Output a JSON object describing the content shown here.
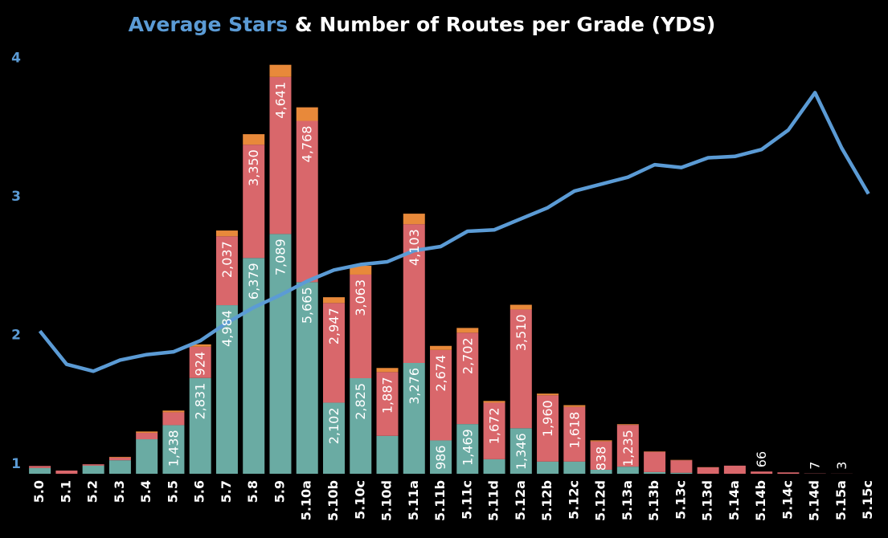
{
  "chart_data": {
    "type": "bar",
    "title_highlight": "Average Stars",
    "title": "& Number of Routes per Grade (YDS)",
    "title_color": "#5b9bd5",
    "categories": [
      "5.0",
      "5.1",
      "5.2",
      "5.3",
      "5.4",
      "5.5",
      "5.6",
      "5.7",
      "5.8",
      "5.9",
      "5.10a",
      "5.10b",
      "5.10c",
      "5.10d",
      "5.11a",
      "5.11b",
      "5.11c",
      "5.11d",
      "5.12a",
      "5.12b",
      "5.12c",
      "5.12d",
      "5.13a",
      "5.13b",
      "5.13c",
      "5.13d",
      "5.14a",
      "5.14b",
      "5.14c",
      "5.14d",
      "5.15a",
      "5.15c"
    ],
    "ylim": [
      0,
      12700
    ],
    "y2lim": [
      1,
      4.1
    ],
    "y2ticks": [
      1,
      2,
      3,
      4
    ],
    "series": [
      {
        "type": "bar",
        "color": "#6aaba3",
        "values": [
          170,
          0,
          240,
          400,
          1020,
          1438,
          2831,
          4984,
          6379,
          7089,
          5665,
          2102,
          2825,
          1120,
          3276,
          986,
          1469,
          430,
          1346,
          360,
          360,
          120,
          210,
          50,
          30,
          0,
          0,
          0,
          0,
          0,
          0,
          null
        ],
        "value_labels": [
          null,
          null,
          null,
          null,
          null,
          "1,438",
          "2,831",
          "4,984",
          "6,379",
          "7,089",
          "5,665",
          "2,102",
          "2,825",
          null,
          "3,276",
          "986",
          "1,469",
          null,
          "1,346",
          null,
          null,
          null,
          null,
          null,
          null,
          null,
          null,
          null,
          null,
          null,
          null,
          null
        ]
      },
      {
        "type": "bar",
        "color": "#d9676b",
        "values": [
          60,
          95,
          40,
          80,
          190,
          380,
          924,
          2037,
          3350,
          4641,
          4768,
          2947,
          3063,
          1887,
          4103,
          2674,
          2702,
          1672,
          3510,
          1960,
          1618,
          838,
          1235,
          600,
          370,
          190,
          240,
          66,
          40,
          7,
          3,
          null
        ],
        "value_labels": [
          null,
          null,
          null,
          null,
          null,
          null,
          "924",
          "2,037",
          "3,350",
          "4,641",
          "4,768",
          "2,947",
          "3,063",
          "1,887",
          "4,103",
          "2,674",
          "2,702",
          "1,672",
          "3,510",
          "1,960",
          "1,618",
          "838",
          "1,235",
          null,
          null,
          null,
          null,
          "66",
          null,
          "7",
          "3",
          null
        ]
      },
      {
        "type": "bar",
        "color": "#e8893a",
        "values": [
          0,
          0,
          0,
          20,
          40,
          50,
          70,
          170,
          310,
          360,
          400,
          170,
          260,
          120,
          310,
          120,
          140,
          50,
          140,
          50,
          50,
          30,
          20,
          10,
          10,
          5,
          0,
          0,
          0,
          0,
          0,
          null
        ]
      },
      {
        "type": "line",
        "axis": "y2",
        "color": "#5b9bd5",
        "values": [
          2.03,
          1.79,
          1.74,
          1.82,
          1.86,
          1.88,
          1.96,
          2.09,
          2.2,
          2.29,
          2.39,
          2.47,
          2.51,
          2.53,
          2.61,
          2.64,
          2.75,
          2.76,
          2.84,
          2.92,
          3.04,
          3.09,
          3.14,
          3.23,
          3.21,
          3.28,
          3.29,
          3.34,
          3.48,
          3.75,
          3.35,
          3.02
        ]
      }
    ]
  }
}
